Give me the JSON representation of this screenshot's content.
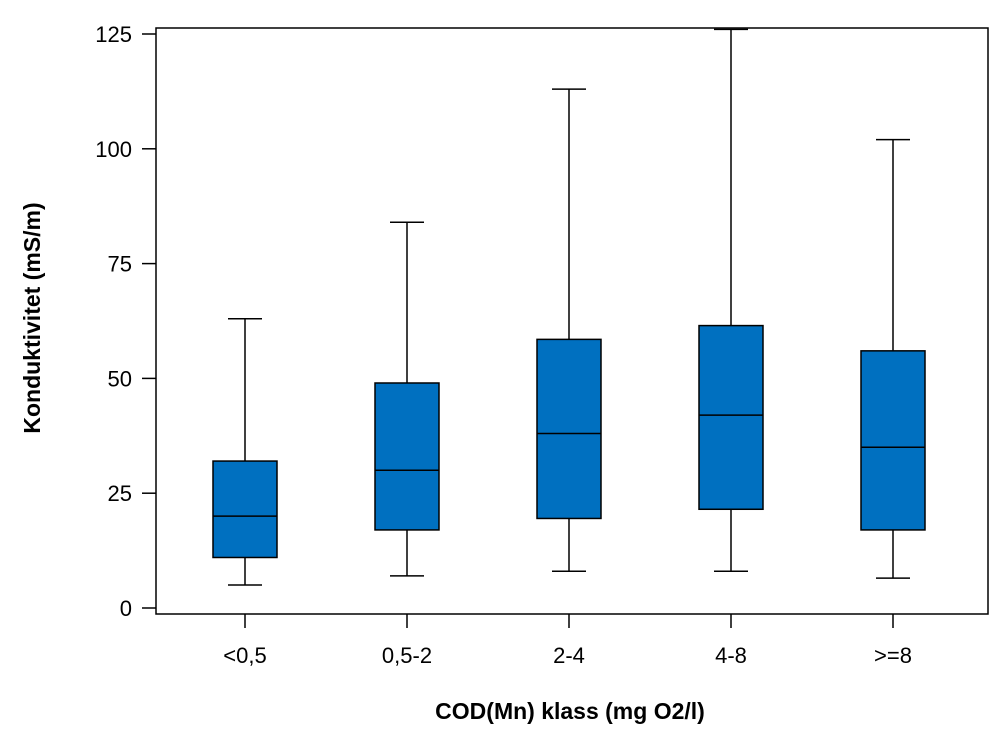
{
  "chart_data": {
    "type": "box",
    "xlabel": "COD(Mn) klass (mg O2/l)",
    "ylabel": "Konduktivitet (mS/m)",
    "ylim": [
      0,
      125
    ],
    "yticks": [
      0,
      25,
      50,
      75,
      100,
      125
    ],
    "grid": false,
    "categories": [
      "<0,5",
      "0,5-2",
      "2-4",
      "4-8",
      ">=8"
    ],
    "boxes": [
      {
        "min": 5,
        "q1": 11,
        "median": 20,
        "q3": 32,
        "max": 63
      },
      {
        "min": 7,
        "q1": 17,
        "median": 30,
        "q3": 49,
        "max": 84
      },
      {
        "min": 8,
        "q1": 19.5,
        "median": 38,
        "q3": 58.5,
        "max": 113
      },
      {
        "min": 8,
        "q1": 21.5,
        "median": 42,
        "q3": 61.5,
        "max": 126
      },
      {
        "min": 6.5,
        "q1": 17,
        "median": 35,
        "q3": 56,
        "max": 102
      }
    ],
    "colors": {
      "box_fill": "#0070C0",
      "line": "#000000"
    }
  }
}
